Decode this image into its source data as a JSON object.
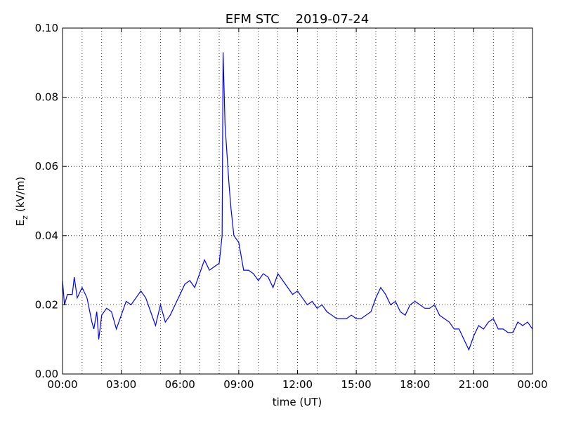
{
  "chart_data": {
    "type": "line",
    "title": "EFM STC    2019-07-24",
    "xlabel": "time (UT)",
    "ylabel": {
      "main": "E",
      "sub": "z",
      "unit": "(kV/m)"
    },
    "xlim": [
      0,
      24
    ],
    "xticks": [
      {
        "value": 0,
        "label": "00:00"
      },
      {
        "value": 3,
        "label": "03:00"
      },
      {
        "value": 6,
        "label": "06:00"
      },
      {
        "value": 9,
        "label": "09:00"
      },
      {
        "value": 12,
        "label": "12:00"
      },
      {
        "value": 15,
        "label": "15:00"
      },
      {
        "value": 18,
        "label": "18:00"
      },
      {
        "value": 21,
        "label": "21:00"
      },
      {
        "value": 24,
        "label": "00:00"
      }
    ],
    "x_minor_grid": [
      1,
      2,
      4,
      5,
      7,
      8,
      10,
      11,
      13,
      14,
      16,
      17,
      19,
      20,
      22,
      23
    ],
    "ylim": [
      0,
      0.1
    ],
    "yticks": [
      {
        "value": 0,
        "label": "0.00"
      },
      {
        "value": 0.02,
        "label": "0.02"
      },
      {
        "value": 0.04,
        "label": "0.04"
      },
      {
        "value": 0.06,
        "label": "0.06"
      },
      {
        "value": 0.08,
        "label": "0.08"
      },
      {
        "value": 0.1,
        "label": "0.10"
      }
    ],
    "grid": true,
    "series": [
      {
        "color": "#0000ff",
        "x": [
          0.0,
          0.1,
          0.25,
          0.5,
          0.6,
          0.75,
          1.0,
          1.25,
          1.5,
          1.6,
          1.75,
          1.85,
          2.0,
          2.25,
          2.5,
          2.75,
          3.0,
          3.25,
          3.5,
          3.75,
          4.0,
          4.25,
          4.5,
          4.75,
          5.0,
          5.25,
          5.5,
          5.75,
          6.0,
          6.25,
          6.5,
          6.75,
          7.0,
          7.25,
          7.5,
          7.75,
          8.0,
          8.15,
          8.2,
          8.3,
          8.5,
          8.6,
          8.75,
          9.0,
          9.25,
          9.5,
          9.75,
          10.0,
          10.25,
          10.5,
          10.75,
          11.0,
          11.25,
          11.5,
          11.75,
          12.0,
          12.25,
          12.5,
          12.75,
          13.0,
          13.25,
          13.5,
          13.75,
          14.0,
          14.25,
          14.5,
          14.75,
          15.0,
          15.25,
          15.5,
          15.75,
          16.0,
          16.25,
          16.5,
          16.75,
          17.0,
          17.25,
          17.5,
          17.75,
          18.0,
          18.25,
          18.5,
          18.75,
          19.0,
          19.25,
          19.5,
          19.75,
          20.0,
          20.25,
          20.5,
          20.75,
          21.0,
          21.25,
          21.5,
          21.75,
          22.0,
          22.25,
          22.5,
          22.75,
          23.0,
          23.25,
          23.5,
          23.75,
          24.0
        ],
        "values": [
          0.027,
          0.02,
          0.023,
          0.023,
          0.028,
          0.022,
          0.025,
          0.022,
          0.015,
          0.013,
          0.018,
          0.01,
          0.017,
          0.019,
          0.018,
          0.013,
          0.017,
          0.021,
          0.02,
          0.022,
          0.024,
          0.022,
          0.018,
          0.014,
          0.02,
          0.015,
          0.017,
          0.02,
          0.023,
          0.026,
          0.027,
          0.025,
          0.029,
          0.033,
          0.03,
          0.031,
          0.032,
          0.04,
          0.093,
          0.072,
          0.055,
          0.048,
          0.04,
          0.038,
          0.03,
          0.03,
          0.029,
          0.027,
          0.029,
          0.028,
          0.025,
          0.029,
          0.027,
          0.025,
          0.023,
          0.024,
          0.022,
          0.02,
          0.021,
          0.019,
          0.02,
          0.018,
          0.017,
          0.016,
          0.016,
          0.016,
          0.017,
          0.016,
          0.016,
          0.017,
          0.018,
          0.022,
          0.025,
          0.023,
          0.02,
          0.021,
          0.018,
          0.017,
          0.02,
          0.021,
          0.02,
          0.019,
          0.019,
          0.02,
          0.017,
          0.016,
          0.015,
          0.013,
          0.013,
          0.01,
          0.007,
          0.011,
          0.014,
          0.013,
          0.015,
          0.016,
          0.013,
          0.013,
          0.012,
          0.012,
          0.015,
          0.014,
          0.015,
          0.013
        ]
      }
    ]
  }
}
